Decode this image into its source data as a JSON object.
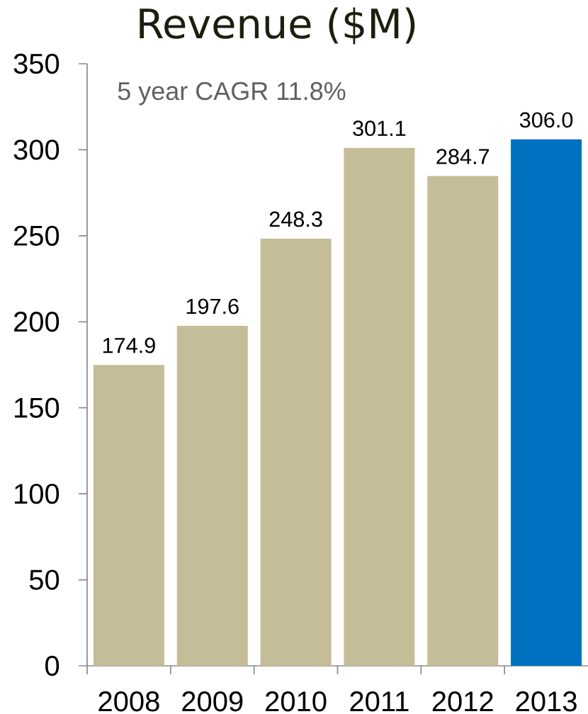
{
  "chart_data": {
    "type": "bar",
    "title": "Revenue ($M)",
    "annotations": [
      "5 year CAGR 11.8%"
    ],
    "categories": [
      "2008",
      "2009",
      "2010",
      "2011",
      "2012",
      "2013"
    ],
    "values": [
      174.9,
      197.6,
      248.3,
      301.1,
      284.7,
      306.0
    ],
    "colors": [
      "#c4bd97",
      "#c4bd97",
      "#c4bd97",
      "#c4bd97",
      "#c4bd97",
      "#0070c0"
    ],
    "value_labels": [
      "174.9",
      "197.6",
      "248.3",
      "301.1",
      "284.7",
      "306.0"
    ],
    "ylim": [
      0,
      350
    ],
    "yticks": [
      0,
      50,
      100,
      150,
      200,
      250,
      300,
      350
    ]
  }
}
